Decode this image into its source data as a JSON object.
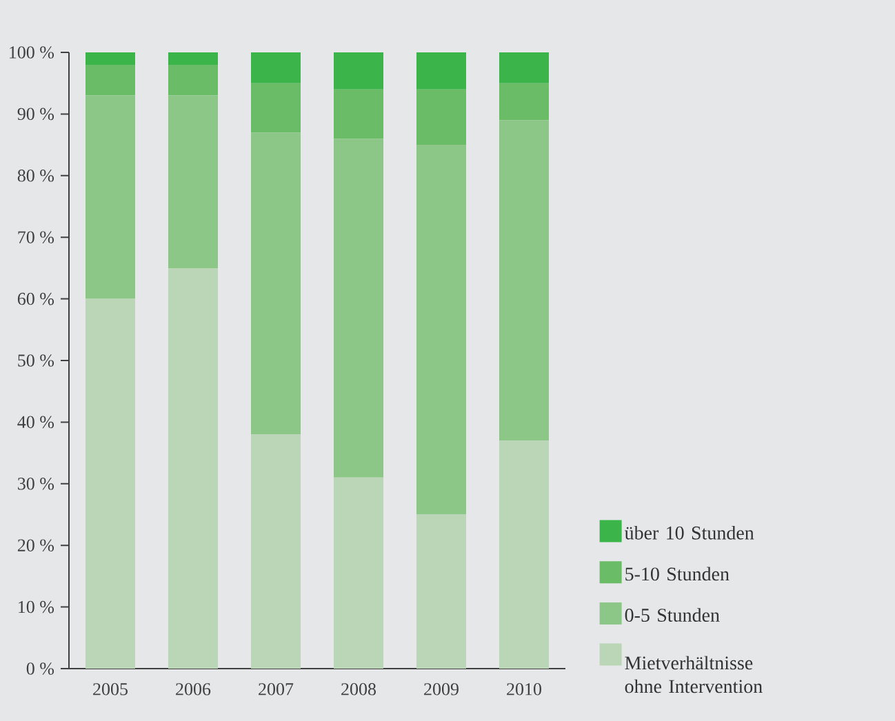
{
  "chart_data": {
    "type": "bar",
    "stacked": true,
    "categories": [
      "2005",
      "2006",
      "2007",
      "2008",
      "2009",
      "2010"
    ],
    "series": [
      {
        "name": "Mietverhältnisse ohne Intervention",
        "color": "#bad6b7",
        "values": [
          60,
          65,
          38,
          31,
          25,
          37
        ]
      },
      {
        "name": "0-5 Stunden",
        "color": "#8cc788",
        "values": [
          33,
          28,
          49,
          55,
          60,
          52
        ]
      },
      {
        "name": "5-10 Stunden",
        "color": "#6abd66",
        "values": [
          5,
          5,
          8,
          8,
          9,
          6
        ]
      },
      {
        "name": "über 10 Stunden",
        "color": "#3bb54a",
        "values": [
          2,
          2,
          5,
          6,
          6,
          5
        ]
      }
    ],
    "ylim": [
      0,
      100
    ],
    "yticks": [
      {
        "value": 0,
        "label": "0 %"
      },
      {
        "value": 10,
        "label": "10 %"
      },
      {
        "value": 20,
        "label": "20 %"
      },
      {
        "value": 30,
        "label": "30 %"
      },
      {
        "value": 40,
        "label": "40 %"
      },
      {
        "value": 50,
        "label": "50 %"
      },
      {
        "value": 60,
        "label": "60 %"
      },
      {
        "value": 70,
        "label": "70 %"
      },
      {
        "value": 80,
        "label": "80 %"
      },
      {
        "value": 90,
        "label": "90 %"
      },
      {
        "value": 100,
        "label": "100 %"
      }
    ],
    "grid": false,
    "legend": "right"
  }
}
